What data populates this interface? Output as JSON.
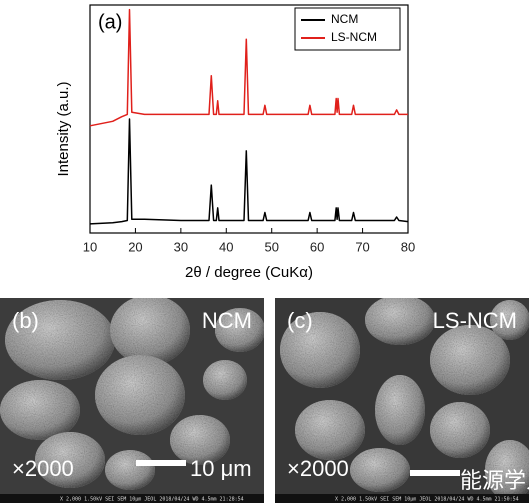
{
  "chart_data": {
    "type": "line",
    "annotation": "(a)",
    "xlabel": "2θ / degree (CuKα)",
    "ylabel": "Intensity (a.u.)",
    "x": [
      10,
      15,
      17,
      18.2,
      18.7,
      19.2,
      22,
      30,
      36.2,
      36.7,
      37.2,
      37.8,
      38.1,
      38.4,
      38.8,
      43.9,
      44.4,
      44.9,
      48.1,
      48.5,
      48.9,
      58,
      58.4,
      58.8,
      63.9,
      64.2,
      64.4,
      64.6,
      64.9,
      67.6,
      68,
      68.4,
      77,
      77.5,
      78,
      80
    ],
    "series": [
      {
        "name": "NCM",
        "color": "#000000",
        "values": [
          4,
          4.5,
          5,
          5.5,
          50,
          6,
          6,
          5.5,
          5.5,
          21,
          5.5,
          5.5,
          11,
          5.5,
          5.5,
          5.5,
          36,
          5.5,
          5.5,
          9,
          5.5,
          5.5,
          9,
          5.5,
          5.5,
          11,
          6,
          11,
          5.5,
          5.5,
          9,
          5.5,
          5.5,
          7,
          5.5,
          5
        ]
      },
      {
        "name": "LS-NCM",
        "color": "#e0201b",
        "values": [
          47,
          49,
          51,
          52,
          98,
          53,
          52,
          52,
          52,
          69,
          52,
          52,
          58,
          52,
          52,
          52,
          85,
          52,
          52,
          56,
          52,
          52,
          56,
          52,
          52,
          59,
          53,
          59,
          52,
          52,
          56,
          52,
          52,
          54,
          52,
          52
        ]
      }
    ],
    "xlim": [
      10,
      80
    ],
    "xticks": [
      10,
      20,
      30,
      40,
      50,
      60,
      70,
      80
    ],
    "ylim": [
      0,
      100
    ],
    "legend": "upper right"
  },
  "panels": [
    {
      "label": "(b)",
      "sample": "NCM",
      "magnification": "×2000",
      "scale": "10 μm",
      "info": "X 2,000   1.50kV SEI SEM   10μm   JEOL   2018/04/24 WD 4.5mm 21:28:54"
    },
    {
      "label": "(c)",
      "sample": "LS-NCM",
      "magnification": "×2000",
      "scale": "能源学人",
      "info": "X 2,000   1.50kV SEI SEM   10μm   JEOL   2018/04/24 WD 4.5mm 21:50:54"
    }
  ]
}
